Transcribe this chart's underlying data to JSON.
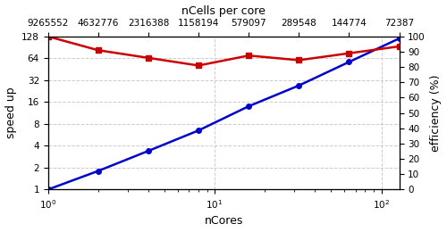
{
  "ncores": [
    1,
    2,
    4,
    8,
    16,
    32,
    64,
    128
  ],
  "ncells_per_core": [
    "9265552",
    "4632776",
    "2316388",
    "1158194",
    "579097",
    "289548",
    "144774",
    "72387"
  ],
  "speedup": [
    1.0,
    1.8,
    3.4,
    6.5,
    14.0,
    27.0,
    57.0,
    120.0
  ],
  "efficiency": [
    100,
    91,
    86,
    81,
    87.5,
    84.5,
    89,
    93.5
  ],
  "speedup_color": "#0000cc",
  "efficiency_color": "#cc0000",
  "xlabel_bottom": "nCores",
  "xlabel_top": "nCells per core",
  "ylabel_left": "speed up",
  "ylabel_right": "efficiency (%)",
  "ylim_left": [
    1,
    128
  ],
  "ylim_right": [
    0,
    100
  ],
  "yticks_left": [
    1,
    2,
    4,
    8,
    16,
    32,
    64,
    128
  ],
  "yticks_right": [
    0,
    10,
    20,
    30,
    40,
    50,
    60,
    70,
    80,
    90,
    100
  ],
  "grid_color": "#cccccc",
  "grid_style": "--",
  "marker_speedup": "o",
  "marker_efficiency": "s",
  "markersize": 4,
  "linewidth": 1.8,
  "tick_labelsize": 7.5,
  "axis_labelsize": 9
}
